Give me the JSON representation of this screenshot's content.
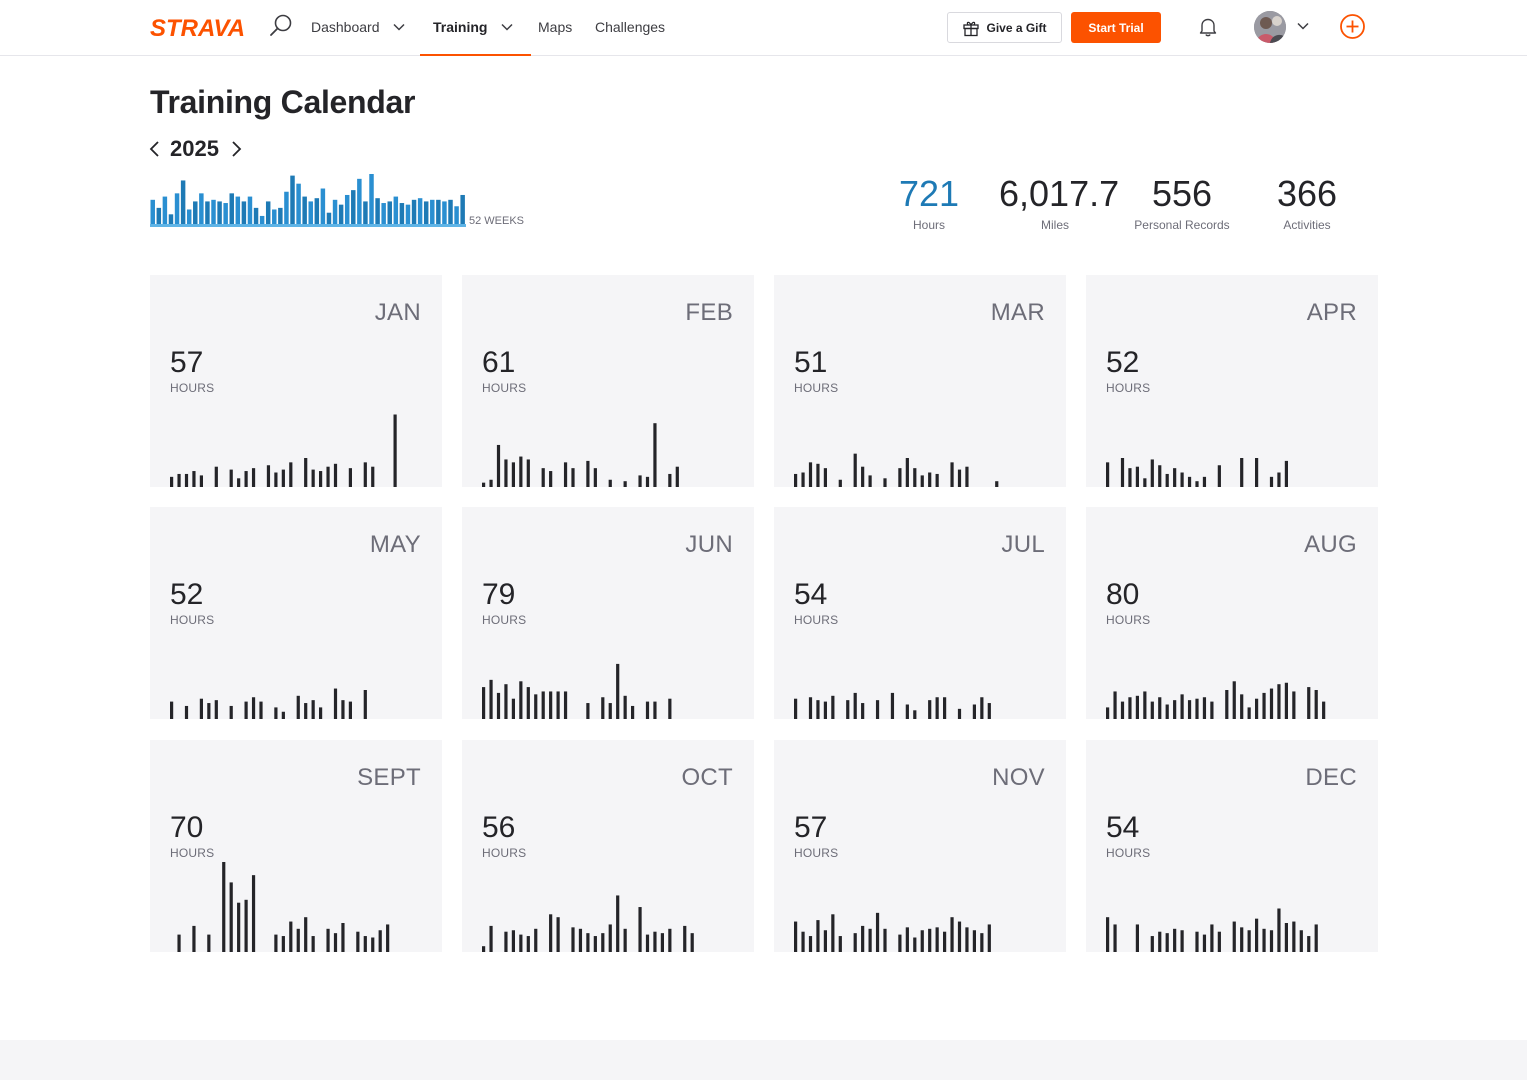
{
  "brand": {
    "logo_text": "STRAVA",
    "accent_color": "#fc5200",
    "link_color": "#1e7ab5"
  },
  "nav": {
    "items": [
      {
        "label": "Dashboard",
        "has_chevron": true,
        "active": false
      },
      {
        "label": "Training",
        "has_chevron": true,
        "active": true
      },
      {
        "label": "Maps",
        "has_chevron": false,
        "active": false
      },
      {
        "label": "Challenges",
        "has_chevron": false,
        "active": false
      }
    ],
    "gift_label": "Give a Gift",
    "trial_label": "Start Trial",
    "icons": [
      "search-icon",
      "gift-icon",
      "bell-icon",
      "avatar",
      "chevron-down-icon",
      "plus-circle-icon"
    ]
  },
  "page": {
    "title": "Training Calendar",
    "year": "2025",
    "weeks_label": "52 WEEKS"
  },
  "summary": [
    {
      "value": "721",
      "label": "Hours",
      "highlight": true
    },
    {
      "value": "6,017.7",
      "label": "Miles",
      "highlight": false
    },
    {
      "value": "556",
      "label": "Personal Records",
      "highlight": false
    },
    {
      "value": "366",
      "label": "Activities",
      "highlight": false
    }
  ],
  "weekly_hours": [
    15,
    10,
    17,
    6,
    19,
    27,
    9,
    14,
    19,
    14,
    15,
    14,
    13,
    19,
    17,
    14,
    17,
    10,
    5,
    14,
    9,
    10,
    20,
    30,
    25,
    17,
    14,
    16,
    22,
    7,
    15,
    12,
    18,
    21,
    28,
    14,
    31,
    16,
    13,
    14,
    17,
    13,
    12,
    15,
    16,
    14,
    15,
    15,
    14,
    15,
    11,
    18
  ],
  "months": [
    {
      "name": "JAN",
      "hours": "57",
      "unit": "HOURS",
      "bars": [
        7,
        9,
        9,
        11,
        8,
        0,
        14,
        0,
        12,
        6,
        11,
        13,
        0,
        15,
        10,
        12,
        17,
        0,
        20,
        12,
        11,
        14,
        16,
        0,
        13,
        0,
        17,
        14,
        0,
        0,
        50
      ]
    },
    {
      "name": "FEB",
      "hours": "61",
      "unit": "HOURS",
      "bars": [
        3,
        5,
        29,
        19,
        17,
        21,
        19,
        0,
        13,
        11,
        0,
        17,
        13,
        0,
        18,
        13,
        0,
        5,
        0,
        4,
        0,
        8,
        7,
        44,
        0,
        9,
        14
      ]
    },
    {
      "name": "MAR",
      "hours": "51",
      "unit": "HOURS",
      "bars": [
        9,
        10,
        17,
        16,
        13,
        0,
        5,
        0,
        23,
        14,
        8,
        0,
        6,
        0,
        13,
        20,
        13,
        8,
        10,
        9,
        0,
        17,
        12,
        14,
        0,
        0,
        0,
        4
      ]
    },
    {
      "name": "APR",
      "hours": "52",
      "unit": "HOURS",
      "bars": [
        17,
        0,
        20,
        13,
        14,
        6,
        19,
        15,
        9,
        13,
        10,
        7,
        4,
        7,
        0,
        15,
        0,
        0,
        20,
        0,
        20,
        0,
        7,
        10,
        18
      ]
    },
    {
      "name": "MAY",
      "hours": "52",
      "unit": "HOURS",
      "bars": [
        12,
        0,
        9,
        0,
        14,
        11,
        13,
        0,
        9,
        0,
        12,
        15,
        12,
        0,
        8,
        5,
        0,
        16,
        11,
        13,
        8,
        0,
        21,
        13,
        12,
        0,
        20
      ]
    },
    {
      "name": "JUN",
      "hours": "79",
      "unit": "HOURS",
      "bars": [
        22,
        27,
        18,
        24,
        14,
        26,
        22,
        17,
        19,
        19,
        19,
        19,
        0,
        0,
        11,
        0,
        15,
        11,
        38,
        16,
        9,
        0,
        12,
        12,
        0,
        14
      ]
    },
    {
      "name": "JUL",
      "hours": "54",
      "unit": "HOURS",
      "bars": [
        14,
        0,
        15,
        13,
        12,
        16,
        0,
        13,
        18,
        11,
        0,
        13,
        0,
        18,
        0,
        10,
        6,
        0,
        13,
        15,
        15,
        0,
        7,
        0,
        10,
        15,
        11
      ]
    },
    {
      "name": "AUG",
      "hours": "80",
      "unit": "HOURS",
      "bars": [
        8,
        19,
        12,
        15,
        16,
        19,
        12,
        15,
        10,
        13,
        17,
        13,
        14,
        15,
        12,
        0,
        20,
        26,
        17,
        8,
        14,
        18,
        21,
        24,
        25,
        19,
        0,
        22,
        20,
        12
      ]
    },
    {
      "name": "SEPT",
      "hours": "70",
      "unit": "HOURS",
      "bars": [
        0,
        12,
        0,
        18,
        0,
        12,
        0,
        63,
        48,
        34,
        36,
        53,
        0,
        0,
        12,
        11,
        21,
        16,
        24,
        11,
        0,
        16,
        13,
        20,
        0,
        14,
        11,
        10,
        15,
        19
      ]
    },
    {
      "name": "OCT",
      "hours": "56",
      "unit": "HOURS",
      "bars": [
        4,
        18,
        0,
        14,
        15,
        12,
        11,
        16,
        0,
        26,
        24,
        0,
        17,
        16,
        13,
        11,
        13,
        19,
        39,
        16,
        0,
        31,
        12,
        14,
        13,
        16,
        0,
        18,
        13
      ]
    },
    {
      "name": "NOV",
      "hours": "57",
      "unit": "HOURS",
      "bars": [
        21,
        14,
        11,
        22,
        15,
        26,
        11,
        0,
        13,
        18,
        16,
        27,
        16,
        0,
        12,
        17,
        10,
        15,
        16,
        17,
        14,
        24,
        21,
        17,
        15,
        13,
        19
      ]
    },
    {
      "name": "DEC",
      "hours": "54",
      "unit": "HOURS",
      "bars": [
        24,
        19,
        0,
        0,
        19,
        0,
        11,
        14,
        13,
        16,
        15,
        0,
        14,
        12,
        19,
        14,
        0,
        21,
        17,
        15,
        23,
        16,
        15,
        30,
        20,
        21,
        15,
        11,
        19
      ]
    }
  ]
}
